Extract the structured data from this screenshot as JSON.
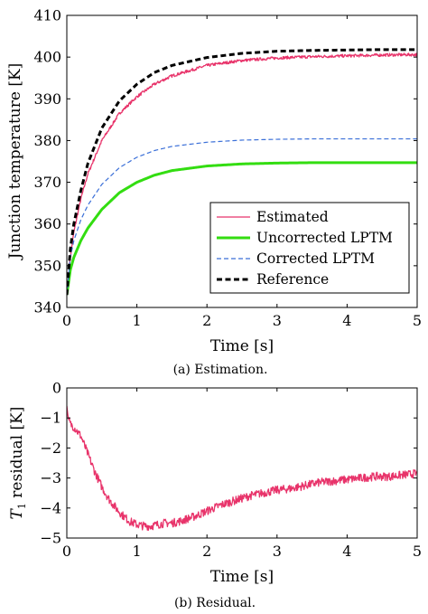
{
  "chart_data": [
    {
      "type": "line",
      "caption": "(a) Estimation.",
      "xlabel": "Time [s]",
      "ylabel": "Junction temperature [K]",
      "xlim": [
        0,
        5
      ],
      "ylim": [
        340,
        410
      ],
      "xticks": [
        0,
        1,
        2,
        3,
        4,
        5
      ],
      "yticks": [
        340,
        350,
        360,
        370,
        380,
        390,
        400,
        410
      ],
      "grid": false,
      "legend_position": "bottom-right",
      "series": [
        {
          "name": "Estimated",
          "color": "#e8336a",
          "style": "solid-thin-noisy",
          "x": [
            0,
            0.05,
            0.1,
            0.2,
            0.3,
            0.5,
            0.75,
            1,
            1.25,
            1.5,
            2,
            2.5,
            3,
            3.5,
            4,
            4.5,
            5
          ],
          "y": [
            343,
            352,
            358,
            366,
            372,
            380,
            386.5,
            390.5,
            393.5,
            395.5,
            398,
            399.2,
            399.8,
            400.1,
            400.3,
            400.5,
            400.6
          ]
        },
        {
          "name": "Uncorrected LPTM",
          "color": "#33dd11",
          "style": "solid-thick",
          "x": [
            0,
            0.05,
            0.1,
            0.2,
            0.3,
            0.5,
            0.75,
            1,
            1.25,
            1.5,
            2,
            2.5,
            3,
            3.5,
            4,
            4.5,
            5
          ],
          "y": [
            343,
            349,
            352,
            356,
            359,
            363.5,
            367.5,
            370,
            371.7,
            372.8,
            373.9,
            374.4,
            374.6,
            374.7,
            374.7,
            374.7,
            374.7
          ]
        },
        {
          "name": "Corrected LPTM",
          "color": "#3a6fd8",
          "style": "dashed-thin",
          "x": [
            0,
            0.05,
            0.1,
            0.2,
            0.3,
            0.5,
            0.75,
            1,
            1.25,
            1.5,
            2,
            2.5,
            3,
            3.5,
            4,
            4.5,
            5
          ],
          "y": [
            343,
            352,
            356,
            361,
            364.5,
            369.5,
            373.5,
            376,
            377.6,
            378.6,
            379.6,
            380.1,
            380.3,
            380.4,
            380.4,
            380.4,
            380.4
          ]
        },
        {
          "name": "Reference",
          "color": "#000000",
          "style": "dashed-thick",
          "x": [
            0,
            0.05,
            0.1,
            0.2,
            0.3,
            0.5,
            0.75,
            1,
            1.25,
            1.5,
            2,
            2.5,
            3,
            3.5,
            4,
            4.5,
            5
          ],
          "y": [
            343,
            354,
            360,
            368,
            374.5,
            383,
            389.5,
            393.5,
            396.3,
            398,
            399.9,
            400.9,
            401.4,
            401.6,
            401.7,
            401.8,
            401.8
          ]
        }
      ]
    },
    {
      "type": "line",
      "caption": "(b) Residual.",
      "xlabel": "Time [s]",
      "ylabel_main": "T",
      "ylabel_sub": "1",
      "ylabel_rest": " residual [K]",
      "xlim": [
        0,
        5
      ],
      "ylim": [
        -5,
        0
      ],
      "xticks": [
        0,
        1,
        2,
        3,
        4,
        5
      ],
      "yticks": [
        0,
        -1,
        -2,
        -3,
        -4,
        -5
      ],
      "ytick_labels": [
        "0",
        "−1",
        "−2",
        "−3",
        "−4",
        "−5"
      ],
      "grid": false,
      "series": [
        {
          "color": "#e8336a",
          "style": "solid-noisy",
          "x": [
            0,
            0.02,
            0.05,
            0.1,
            0.2,
            0.3,
            0.4,
            0.5,
            0.6,
            0.7,
            0.8,
            0.9,
            1,
            1.1,
            1.2,
            1.3,
            1.4,
            1.5,
            1.6,
            1.8,
            2,
            2.2,
            2.4,
            2.6,
            2.8,
            3,
            3.2,
            3.4,
            3.6,
            3.8,
            4,
            4.2,
            4.4,
            4.6,
            4.8,
            5
          ],
          "y": [
            -0.6,
            -1.0,
            -1.2,
            -1.3,
            -1.6,
            -2.2,
            -2.8,
            -3.3,
            -3.7,
            -4.0,
            -4.25,
            -4.45,
            -4.55,
            -4.6,
            -4.6,
            -4.55,
            -4.5,
            -4.5,
            -4.45,
            -4.3,
            -4.1,
            -3.9,
            -3.75,
            -3.6,
            -3.5,
            -3.4,
            -3.35,
            -3.25,
            -3.15,
            -3.1,
            -3.05,
            -3.0,
            -2.95,
            -2.95,
            -2.9,
            -2.85
          ]
        }
      ]
    }
  ]
}
